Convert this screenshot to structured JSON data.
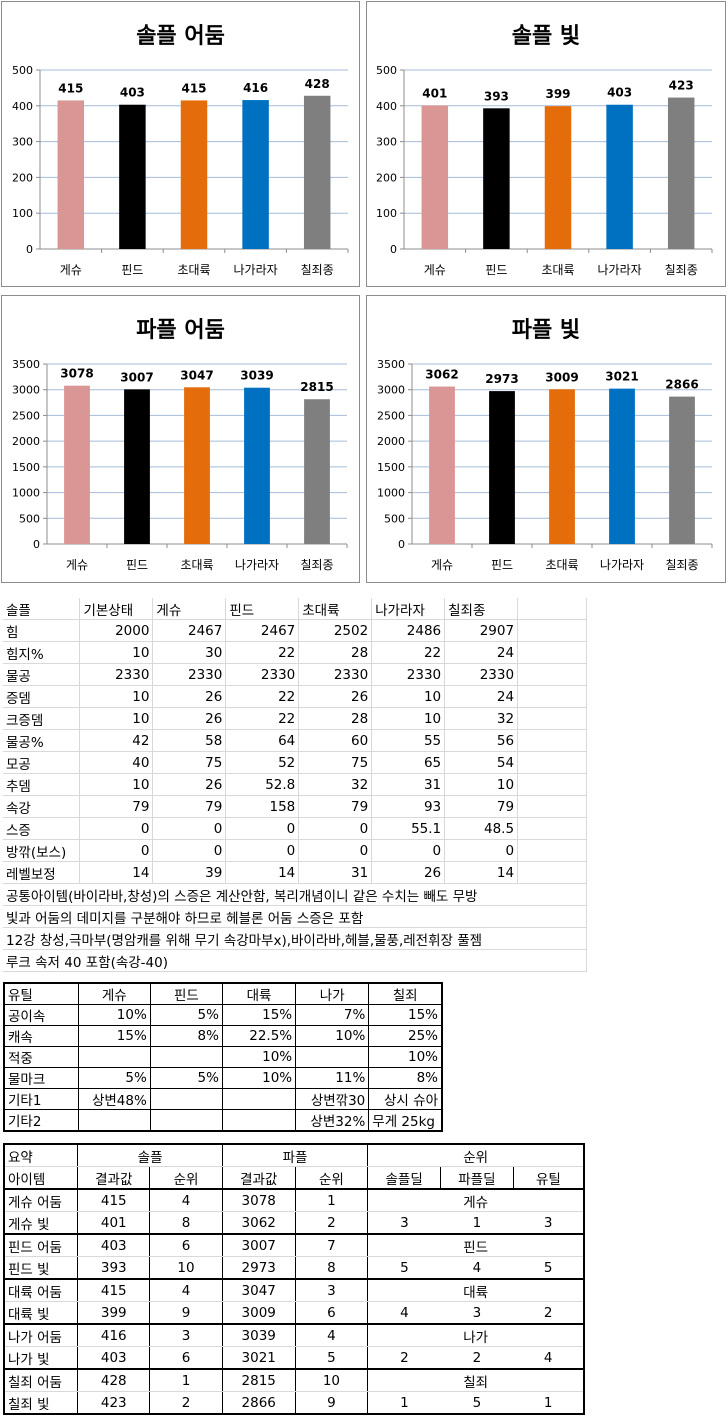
{
  "chart_data": [
    {
      "type": "bar",
      "title": "솔플 어둠",
      "categories": [
        "게슈",
        "핀드",
        "초대륙",
        "나가라자",
        "칠죄종"
      ],
      "values": [
        415,
        403,
        415,
        416,
        428
      ],
      "ylim": [
        0,
        500
      ],
      "ticks": [
        0,
        100,
        200,
        300,
        400,
        500
      ],
      "grid": true
    },
    {
      "type": "bar",
      "title": "솔플 빛",
      "categories": [
        "게슈",
        "핀드",
        "초대륙",
        "나가라자",
        "칠죄종"
      ],
      "values": [
        401,
        393,
        399,
        403,
        423
      ],
      "ylim": [
        0,
        500
      ],
      "ticks": [
        0,
        100,
        200,
        300,
        400,
        500
      ],
      "grid": true
    },
    {
      "type": "bar",
      "title": "파플 어둠",
      "categories": [
        "게슈",
        "핀드",
        "초대륙",
        "나가라자",
        "칠죄종"
      ],
      "values": [
        3078,
        3007,
        3047,
        3039,
        2815
      ],
      "ylim": [
        0,
        3500
      ],
      "ticks": [
        0,
        500,
        1000,
        1500,
        2000,
        2500,
        3000,
        3500
      ],
      "grid": true
    },
    {
      "type": "bar",
      "title": "파플 빛",
      "categories": [
        "게슈",
        "핀드",
        "초대륙",
        "나가라자",
        "칠죄종"
      ],
      "values": [
        3062,
        2973,
        3009,
        3021,
        2866
      ],
      "ylim": [
        0,
        3500
      ],
      "ticks": [
        0,
        500,
        1000,
        1500,
        2000,
        2500,
        3000,
        3500
      ],
      "grid": true
    }
  ],
  "bar_colors": [
    "#d99694",
    "#000000",
    "#e46c0a",
    "#0070c0",
    "#7f7f7f"
  ],
  "stat_table": {
    "header": [
      "솔플",
      "기본상태",
      "게슈",
      "핀드",
      "초대륙",
      "나가라자",
      "칠죄종"
    ],
    "rows": [
      [
        "힘",
        "2000",
        "2467",
        "2467",
        "2502",
        "2486",
        "2907"
      ],
      [
        "힘지%",
        "10",
        "30",
        "22",
        "28",
        "22",
        "24"
      ],
      [
        "물공",
        "2330",
        "2330",
        "2330",
        "2330",
        "2330",
        "2330"
      ],
      [
        "증뎀",
        "10",
        "26",
        "22",
        "26",
        "10",
        "24"
      ],
      [
        "크증뎀",
        "10",
        "26",
        "22",
        "28",
        "10",
        "32"
      ],
      [
        "물공%",
        "42",
        "58",
        "64",
        "60",
        "55",
        "56"
      ],
      [
        "모공",
        "40",
        "75",
        "52",
        "75",
        "65",
        "54"
      ],
      [
        "추뎀",
        "10",
        "26",
        "52.8",
        "32",
        "31",
        "10"
      ],
      [
        "속강",
        "79",
        "79",
        "158",
        "79",
        "93",
        "79"
      ],
      [
        "스증",
        "0",
        "0",
        "0",
        "0",
        "55.1",
        "48.5"
      ],
      [
        "방깎(보스)",
        "0",
        "0",
        "0",
        "0",
        "0",
        "0"
      ],
      [
        "레벨보정",
        "14",
        "39",
        "14",
        "31",
        "26",
        "14"
      ]
    ],
    "notes": [
      "공통아이템(바이라바,창성)의 스증은 계산안함, 복리개념이니 같은 수치는 빼도 무방",
      "빛과 어둠의 데미지를 구분해야 하므로 헤블론 어둠 스증은 포함",
      "12강 창성,극마부(명암캐를 위해 무기 속강마부x),바이라바,헤블,물풍,레전휘장 풀젬",
      "루크 속저 40 포함(속강-40)"
    ]
  },
  "util_table": {
    "header": [
      "유틸",
      "게슈",
      "핀드",
      "대륙",
      "나가",
      "칠죄"
    ],
    "rows": [
      [
        "공이속",
        "10%",
        "5%",
        "15%",
        "7%",
        "15%"
      ],
      [
        "캐속",
        "15%",
        "8%",
        "22.5%",
        "10%",
        "25%"
      ],
      [
        "적중",
        "",
        "",
        "10%",
        "",
        "10%"
      ],
      [
        "물마크",
        "5%",
        "5%",
        "10%",
        "11%",
        "8%"
      ],
      [
        "기타1",
        "상변48%",
        "",
        "",
        "상변깎30",
        "상시 슈아"
      ],
      [
        "기타2",
        "",
        "",
        "",
        "상변32%",
        "무게 25kg"
      ]
    ]
  },
  "summary_table": {
    "title": "요약",
    "group_solo": "솔플",
    "group_party": "파플",
    "group_rank": "순위",
    "col_item": "아이템",
    "col_result": "결과값",
    "col_rank": "순위",
    "col_solo_deal": "솔플딜",
    "col_party_deal": "파플딜",
    "col_util": "유틸",
    "groups": [
      {
        "name": "게슈",
        "dark": [
          "게슈 어둠",
          "415",
          "4",
          "3078",
          "1"
        ],
        "light": [
          "게슈 빛",
          "401",
          "8",
          "3062",
          "2"
        ],
        "ranks": [
          "3",
          "1",
          "3"
        ]
      },
      {
        "name": "핀드",
        "dark": [
          "핀드 어둠",
          "403",
          "6",
          "3007",
          "7"
        ],
        "light": [
          "핀드 빛",
          "393",
          "10",
          "2973",
          "8"
        ],
        "ranks": [
          "5",
          "4",
          "5"
        ]
      },
      {
        "name": "대륙",
        "dark": [
          "대륙 어둠",
          "415",
          "4",
          "3047",
          "3"
        ],
        "light": [
          "대륙 빛",
          "399",
          "9",
          "3009",
          "6"
        ],
        "ranks": [
          "4",
          "3",
          "2"
        ]
      },
      {
        "name": "나가",
        "dark": [
          "나가 어둠",
          "416",
          "3",
          "3039",
          "4"
        ],
        "light": [
          "나가 빛",
          "403",
          "6",
          "3021",
          "5"
        ],
        "ranks": [
          "2",
          "2",
          "4"
        ]
      },
      {
        "name": "칠죄",
        "dark": [
          "칠죄 어둠",
          "428",
          "1",
          "2815",
          "10"
        ],
        "light": [
          "칠죄 빛",
          "423",
          "2",
          "2866",
          "9"
        ],
        "ranks": [
          "1",
          "5",
          "1"
        ]
      }
    ]
  }
}
